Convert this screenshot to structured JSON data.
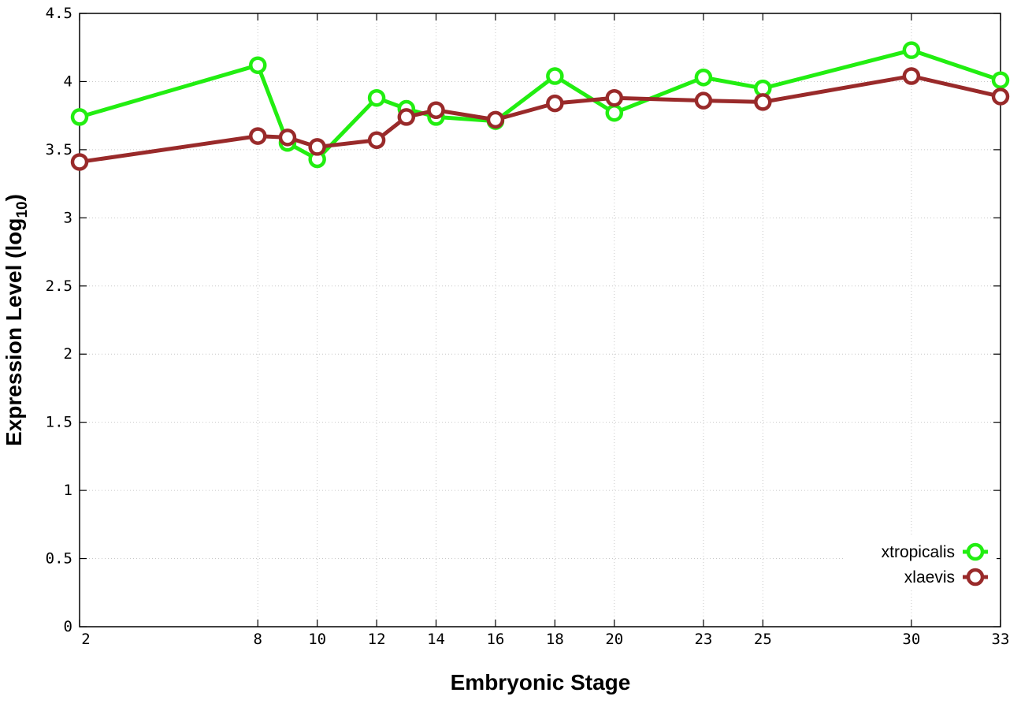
{
  "chart_data": {
    "type": "line",
    "xlabel": "Embryonic Stage",
    "ylabel": "Expression Level (log",
    "ylabel_sub": "10",
    "ylabel_end": ")",
    "x": [
      2,
      8,
      9,
      10,
      12,
      13,
      14,
      16,
      18,
      20,
      23,
      25,
      30,
      33
    ],
    "x_ticks": [
      2,
      8,
      10,
      12,
      14,
      16,
      18,
      20,
      23,
      25,
      30,
      33
    ],
    "y_ticks": [
      "0",
      "0.5",
      "1",
      "1.5",
      "2",
      "2.5",
      "3",
      "3.5",
      "4",
      "4.5"
    ],
    "xlim": [
      2,
      33
    ],
    "ylim": [
      0,
      4.5
    ],
    "grid": true,
    "legend_position": "bottom-right",
    "series": [
      {
        "name": "xtropicalis",
        "color": "#22ee11",
        "values": [
          3.74,
          4.12,
          3.55,
          3.43,
          3.88,
          3.8,
          3.74,
          3.71,
          4.04,
          3.77,
          4.03,
          3.95,
          4.23,
          4.01
        ]
      },
      {
        "name": "xlaevis",
        "color": "#992a2a",
        "values": [
          3.41,
          3.6,
          3.59,
          3.52,
          3.57,
          3.74,
          3.79,
          3.72,
          3.84,
          3.88,
          3.86,
          3.85,
          4.04,
          3.89
        ]
      }
    ]
  }
}
